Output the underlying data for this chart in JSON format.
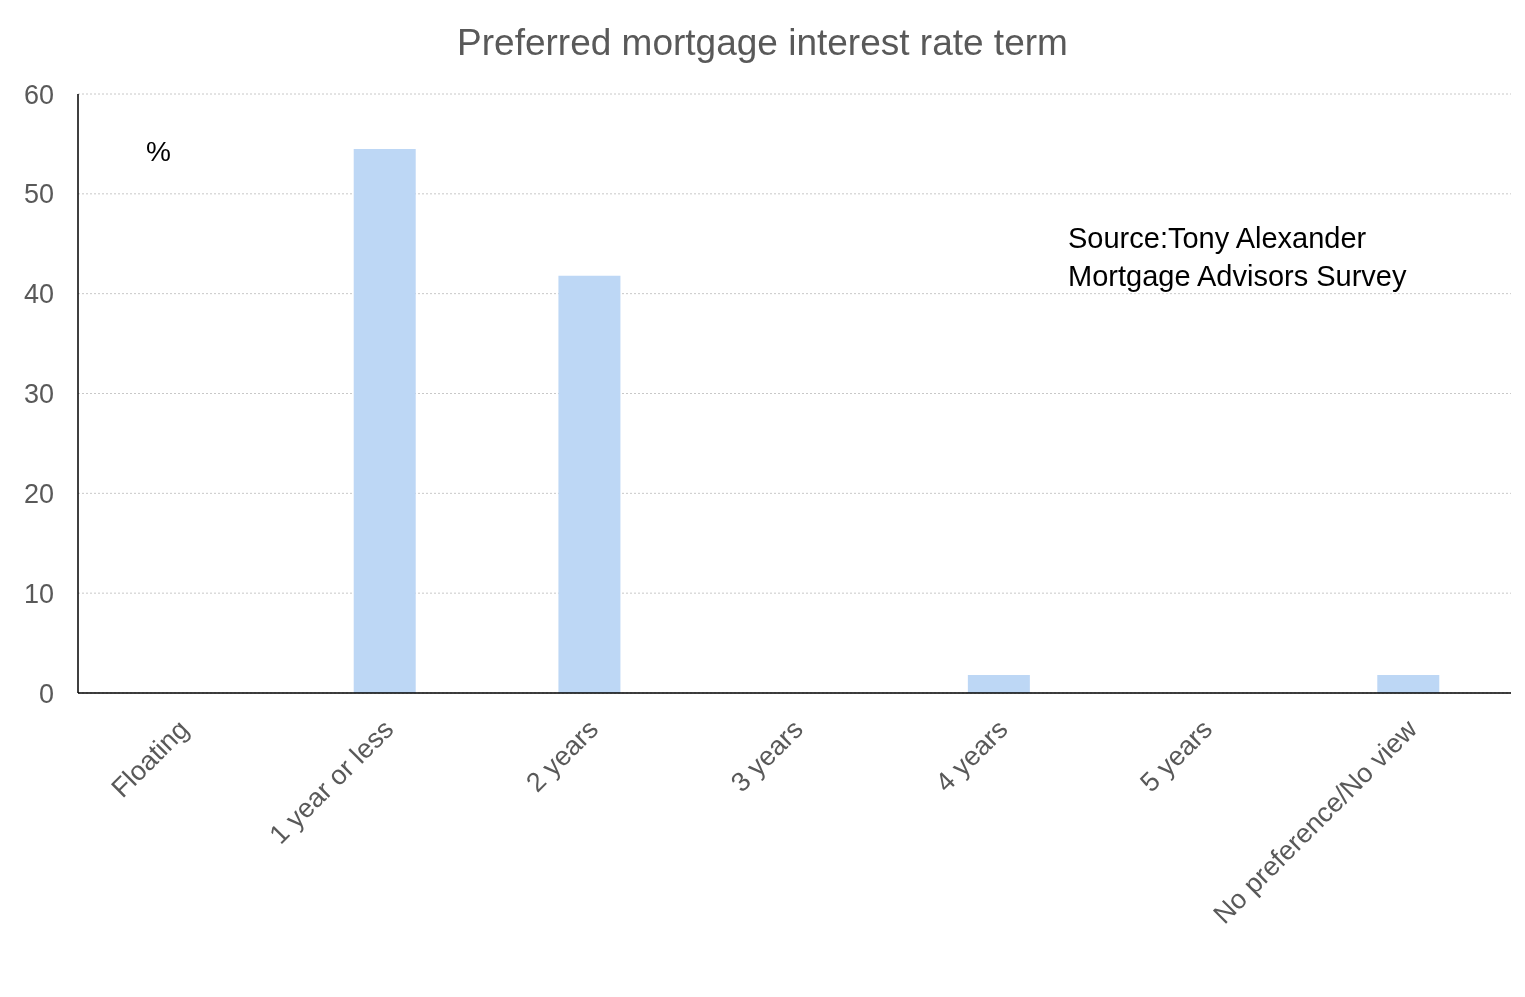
{
  "chart_data": {
    "type": "bar",
    "title": "Preferred mortgage interest rate term",
    "ylabel": "%",
    "categories": [
      "Floating",
      "1 year or less",
      "2 years",
      "3 years",
      "4 years",
      "5 years",
      "No preference/No view"
    ],
    "values": [
      0,
      54.5,
      41.8,
      0,
      1.8,
      0,
      1.8
    ],
    "color": "#bdd7f5",
    "ylim": [
      0,
      60
    ],
    "yticks": [
      0,
      10,
      20,
      30,
      40,
      50,
      60
    ],
    "grid": "y",
    "annotations": [
      "Source:Tony Alexander Mortgage Advisors Survey"
    ]
  }
}
